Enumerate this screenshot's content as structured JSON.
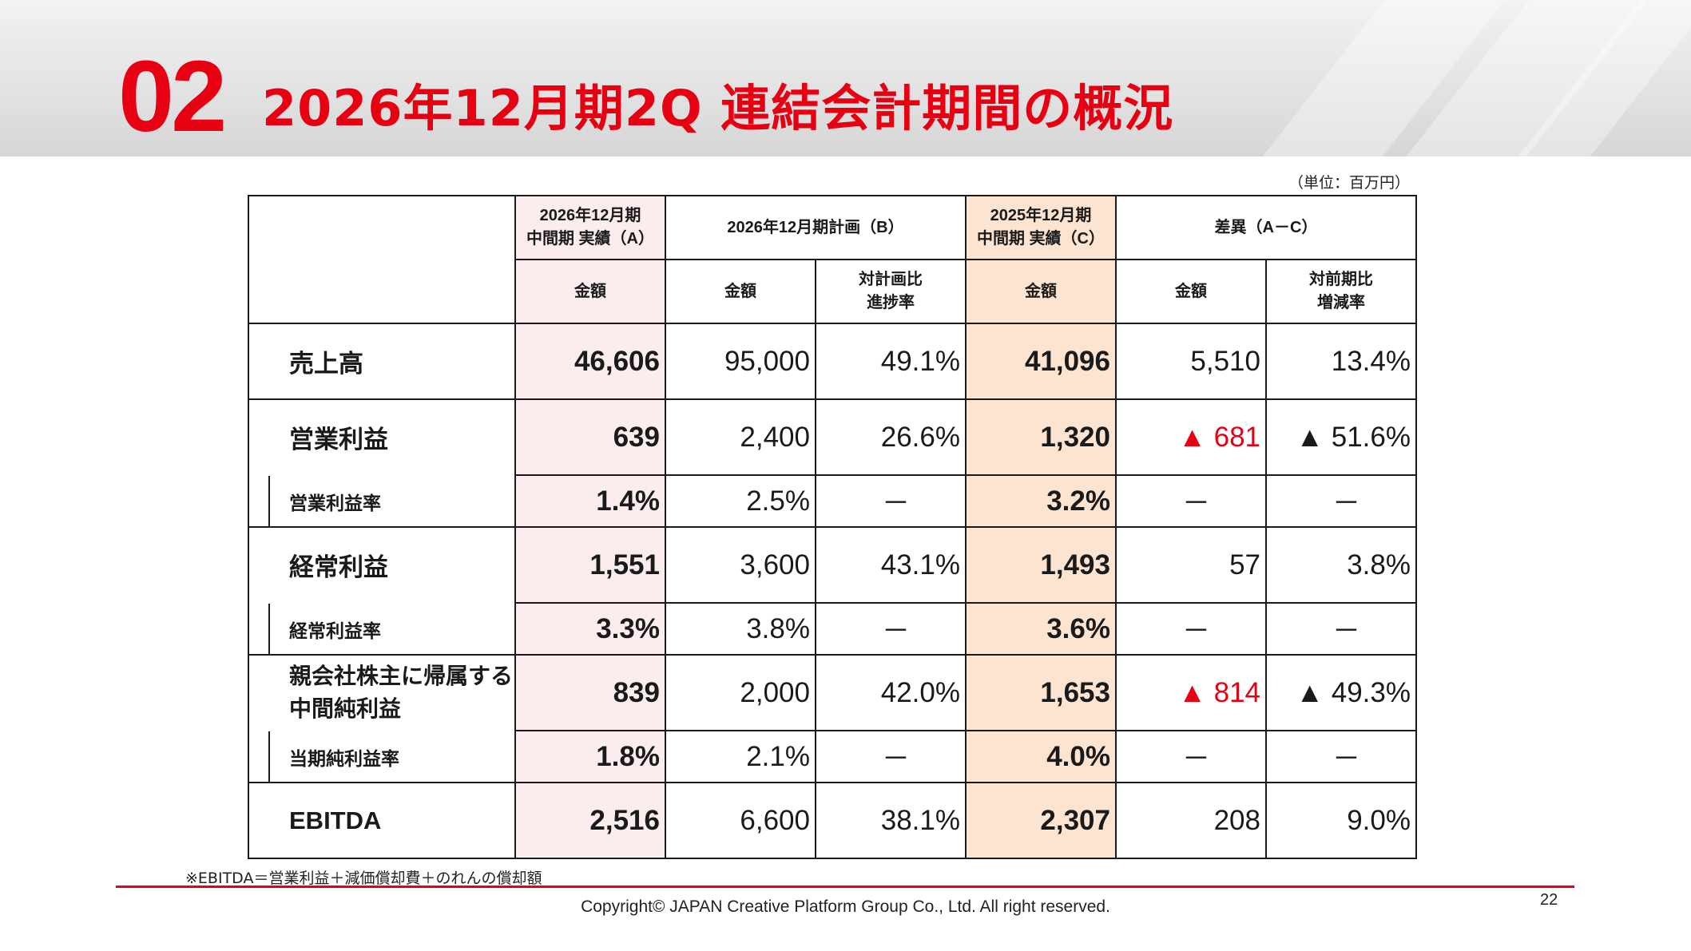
{
  "header": {
    "section_number": "02",
    "title": "2026年12月期2Q 連結会計期間の概況"
  },
  "unit_note": "（単位：百万円）",
  "table": {
    "col_headers": {
      "a": "2026年12月期\n中間期 実績（A）",
      "b": "2026年12月期計画（B）",
      "c": "2025年12月期\n中間期 実績（C）",
      "d": "差異（A－C）"
    },
    "sub_headers": {
      "a_amount": "金額",
      "b_amount": "金額",
      "b_progress": "対計画比\n進捗率",
      "c_amount": "金額",
      "d_amount": "金額",
      "d_change": "対前期比\n増減率"
    },
    "rows": {
      "sales": {
        "label": "売上高",
        "a": "46,606",
        "b": "95,000",
        "b_rate": "49.1%",
        "c": "41,096",
        "d": "5,510",
        "d_rate": "13.4%"
      },
      "op_income": {
        "label": "営業利益",
        "a": "639",
        "b": "2,400",
        "b_rate": "26.6%",
        "c": "1,320",
        "d": "▲ 681",
        "d_rate": "▲ 51.6%"
      },
      "op_margin": {
        "label": "営業利益率",
        "a": "1.4%",
        "b": "2.5%",
        "b_rate": "－",
        "c": "3.2%",
        "d": "－",
        "d_rate": "－"
      },
      "ord_income": {
        "label": "経常利益",
        "a": "1,551",
        "b": "3,600",
        "b_rate": "43.1%",
        "c": "1,493",
        "d": "57",
        "d_rate": "3.8%"
      },
      "ord_margin": {
        "label": "経常利益率",
        "a": "3.3%",
        "b": "3.8%",
        "b_rate": "－",
        "c": "3.6%",
        "d": "－",
        "d_rate": "－"
      },
      "net_income": {
        "label": "親会社株主に帰属する\n中間純利益",
        "a": "839",
        "b": "2,000",
        "b_rate": "42.0%",
        "c": "1,653",
        "d": "▲ 814",
        "d_rate": "▲ 49.3%"
      },
      "net_margin": {
        "label": "当期純利益率",
        "a": "1.8%",
        "b": "2.1%",
        "b_rate": "－",
        "c": "4.0%",
        "d": "－",
        "d_rate": "－"
      },
      "ebitda": {
        "label": "EBITDA",
        "a": "2,516",
        "b": "6,600",
        "b_rate": "38.1%",
        "c": "2,307",
        "d": "208",
        "d_rate": "9.0%"
      }
    }
  },
  "footnote": "※EBITDA＝営業利益＋減価償却費＋のれんの償却額",
  "copyright": "Copyright© JAPAN Creative Platform Group Co., Ltd. All right reserved.",
  "page_number": "22",
  "colors": {
    "accent_red": "#e60012",
    "col_a_bg": "#fbeced",
    "col_c_bg": "#fde4d0"
  }
}
